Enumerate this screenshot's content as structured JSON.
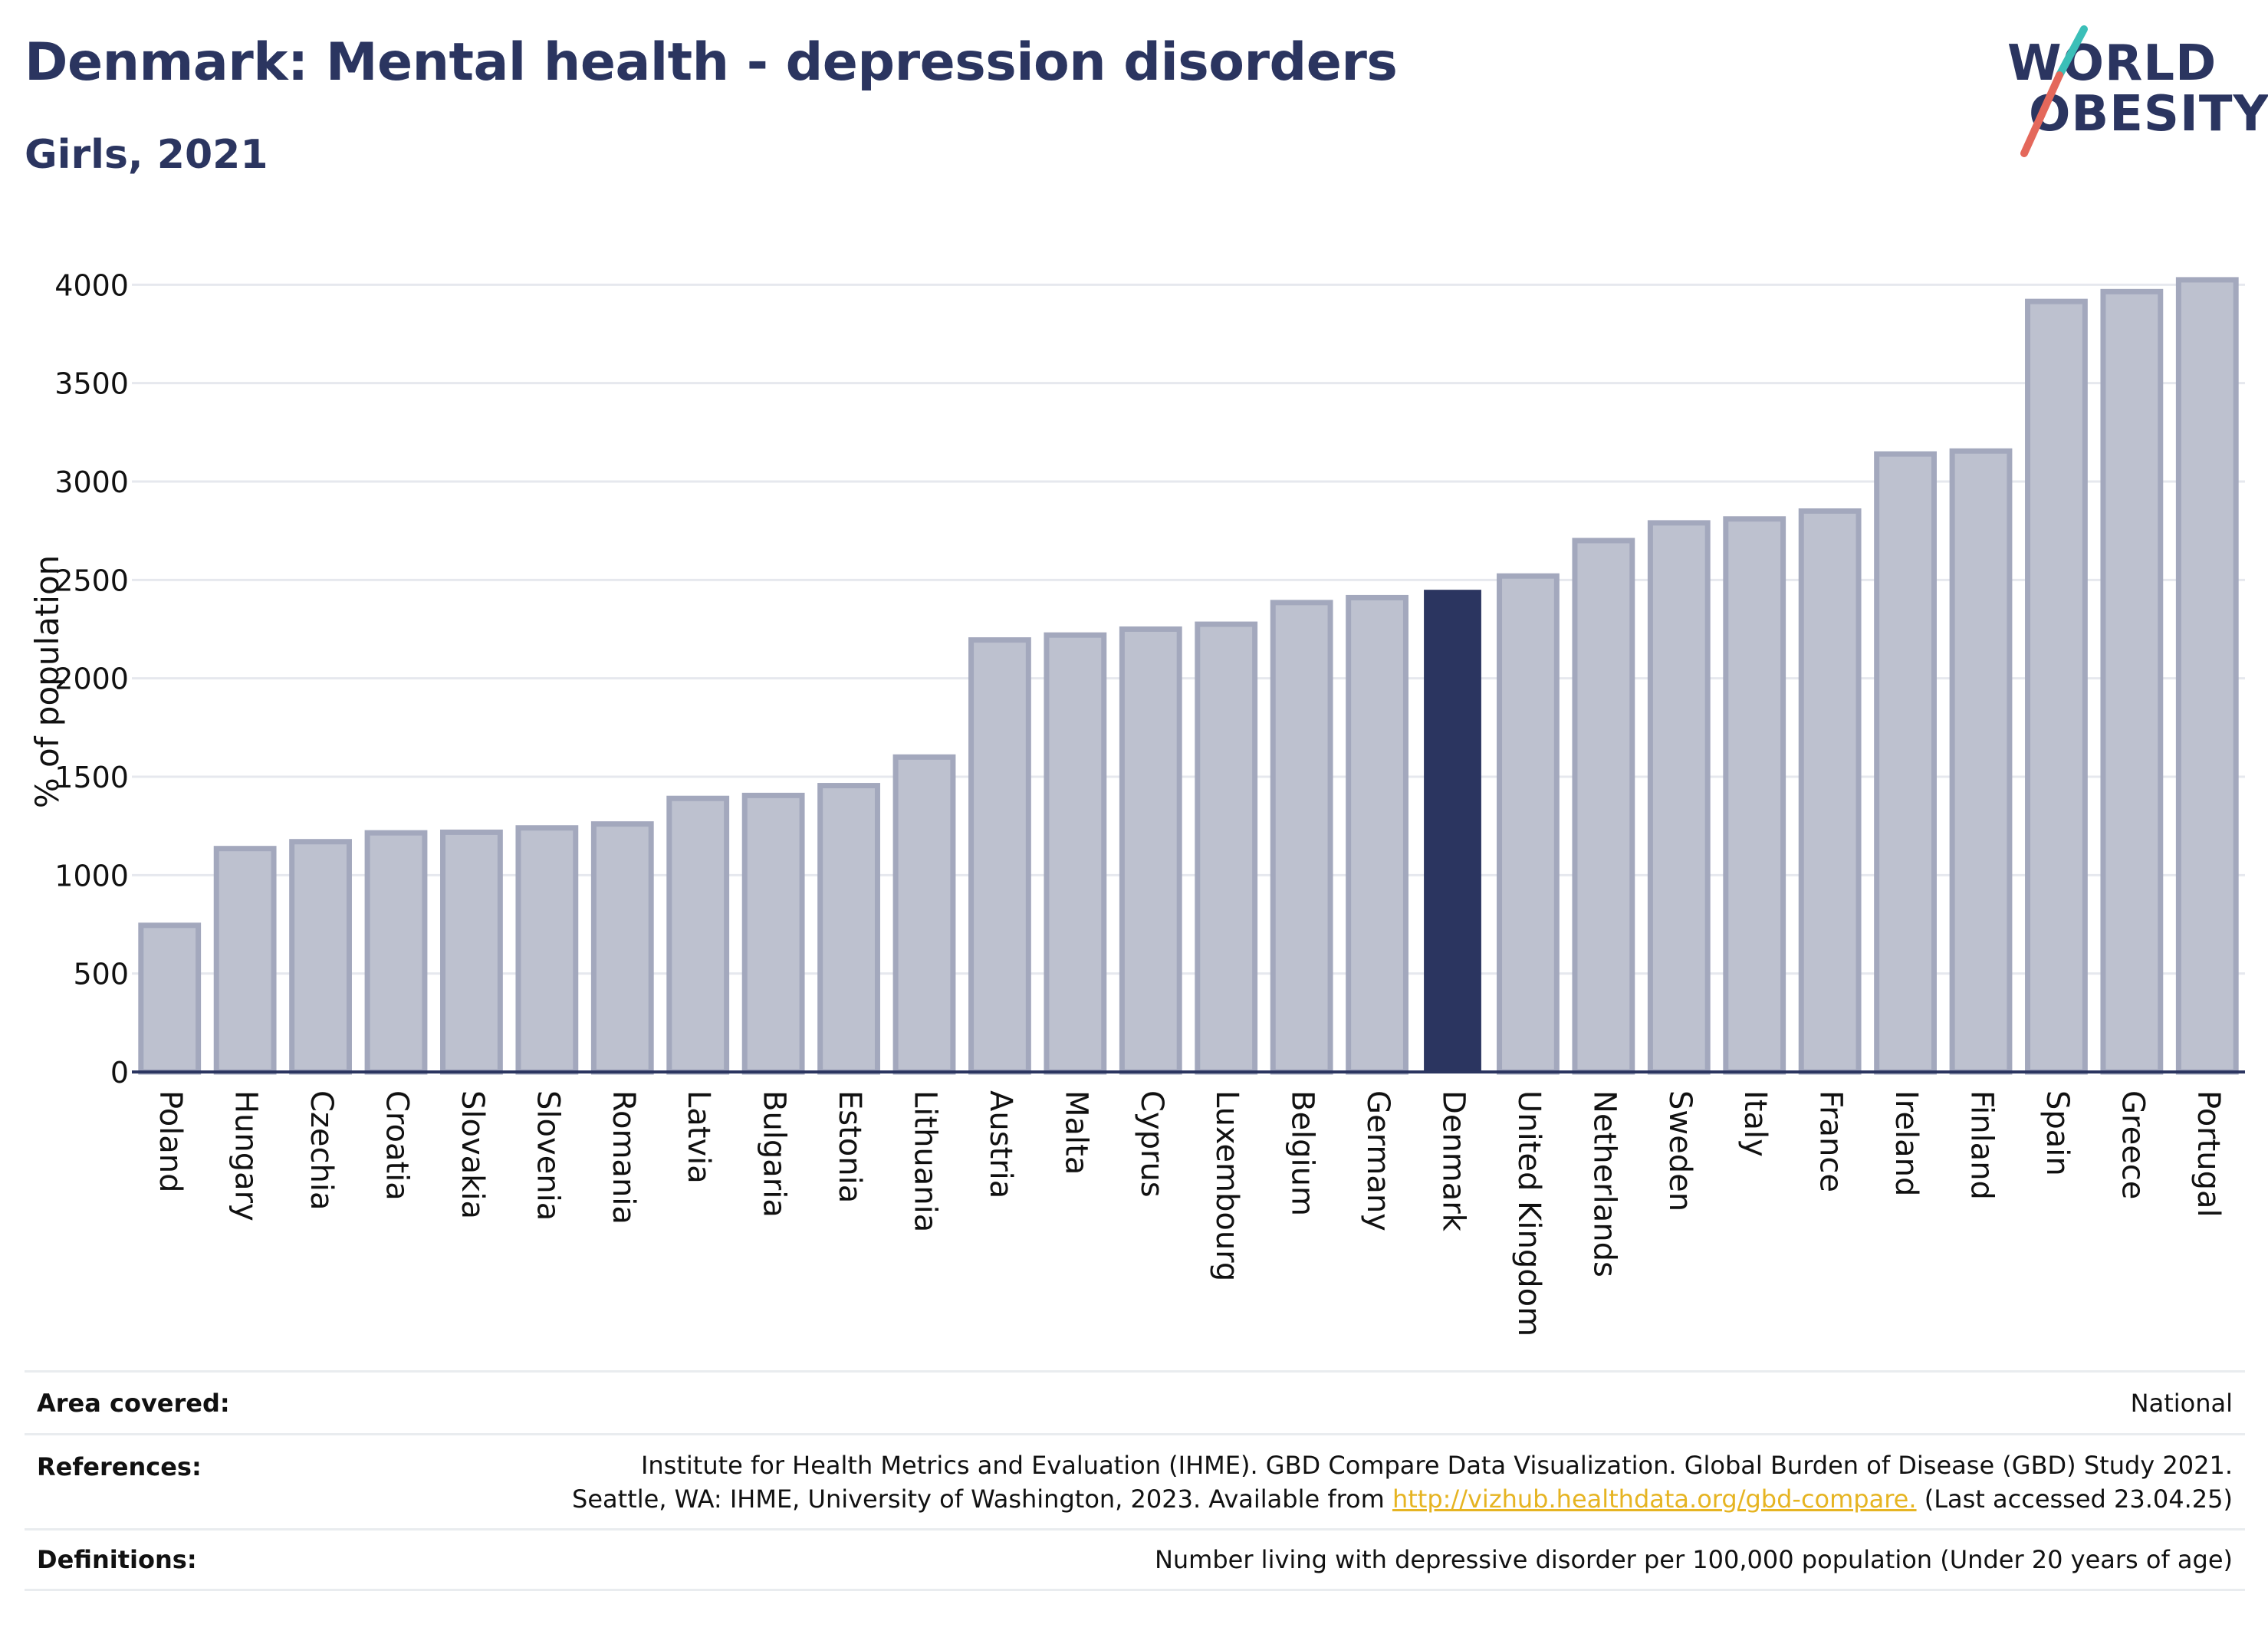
{
  "header": {
    "title": "Denmark: Mental health - depression disorders",
    "subtitle": "Girls, 2021"
  },
  "logo": {
    "line1": "WORLD",
    "line2": "OBESITY"
  },
  "colors": {
    "highlight": "#2b3560",
    "bar": "#bdc1cf",
    "bar_border": "#a3a8bd",
    "accent_teal": "#3bbfb8",
    "accent_red": "#e4685b",
    "link": "#e6b422"
  },
  "chart_data": {
    "type": "bar",
    "title": "Denmark: Mental health - depression disorders",
    "subtitle": "Girls, 2021",
    "ylabel": "% of population",
    "xlabel": "",
    "ylim": [
      0,
      4200
    ],
    "yticks": [
      0,
      500,
      1000,
      1500,
      2000,
      2500,
      3000,
      3500,
      4000
    ],
    "grid": true,
    "highlight": "Denmark",
    "categories": [
      "Poland",
      "Hungary",
      "Czechia",
      "Croatia",
      "Slovakia",
      "Slovenia",
      "Romania",
      "Latvia",
      "Bulgaria",
      "Estonia",
      "Lithuania",
      "Austria",
      "Malta",
      "Cyprus",
      "Luxembourg",
      "Belgium",
      "Germany",
      "Denmark",
      "United Kingdom",
      "Netherlands",
      "Sweden",
      "Italy",
      "France",
      "Ireland",
      "Finland",
      "Spain",
      "Greece",
      "Portugal"
    ],
    "values": [
      745,
      1135,
      1170,
      1215,
      1218,
      1240,
      1260,
      1390,
      1405,
      1455,
      1600,
      2195,
      2220,
      2250,
      2275,
      2385,
      2410,
      2450,
      2520,
      2700,
      2790,
      2810,
      2850,
      3140,
      3155,
      3915,
      3965,
      4025
    ]
  },
  "footer": {
    "area_label": "Area covered:",
    "area_value": "National",
    "references_label": "References:",
    "references_line1": "Institute for Health Metrics and Evaluation (IHME). GBD Compare Data Visualization. Global Burden of Disease (GBD) Study 2021.",
    "references_line2_prefix": "Seattle, WA: IHME, University of Washington, 2023. Available from ",
    "references_link": "http://vizhub.healthdata.org/gbd-compare.",
    "references_line2_suffix": " (Last accessed 23.04.25)",
    "definitions_label": "Definitions:",
    "definitions_value": "Number living with depressive disorder per 100,000 population (Under 20 years of age)"
  }
}
